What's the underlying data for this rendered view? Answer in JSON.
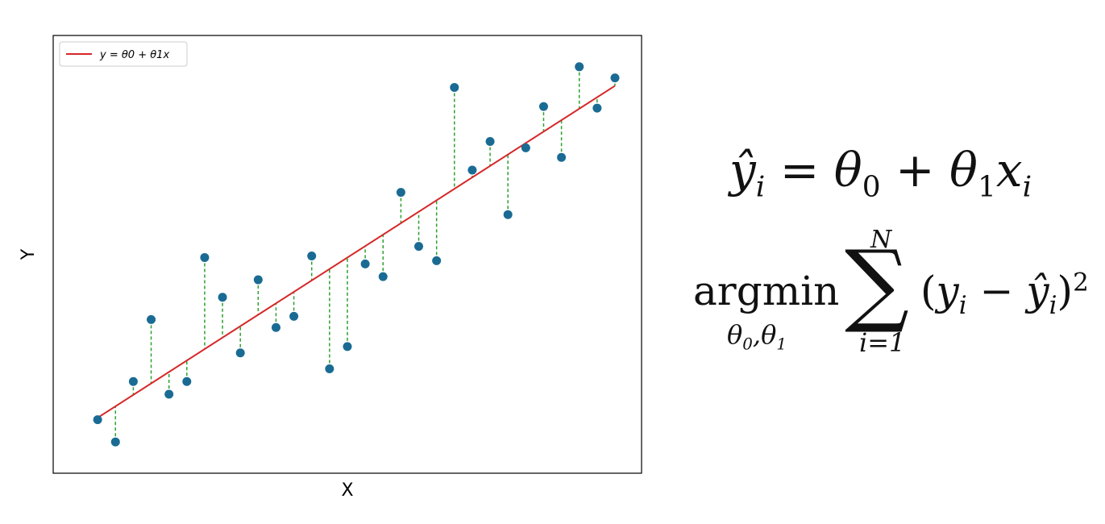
{
  "chart_data": {
    "type": "scatter",
    "xlabel": "X",
    "ylabel": "Y",
    "legend": {
      "label": "y = θ0 + θ1x",
      "placement": "top-left"
    },
    "xlim": [
      0,
      30
    ],
    "ylim": [
      -1,
      24
    ],
    "grid": false,
    "fit_line": {
      "intercept": 0.5,
      "slope": 0.72
    },
    "points": [
      {
        "x": 1,
        "y": 1.1
      },
      {
        "x": 2,
        "y": -0.3
      },
      {
        "x": 3,
        "y": 3.5
      },
      {
        "x": 4,
        "y": 7.4
      },
      {
        "x": 5,
        "y": 2.7
      },
      {
        "x": 6,
        "y": 3.5
      },
      {
        "x": 7,
        "y": 11.3
      },
      {
        "x": 8,
        "y": 8.8
      },
      {
        "x": 9,
        "y": 5.3
      },
      {
        "x": 10,
        "y": 9.9
      },
      {
        "x": 11,
        "y": 6.9
      },
      {
        "x": 12,
        "y": 7.6
      },
      {
        "x": 13,
        "y": 11.4
      },
      {
        "x": 14,
        "y": 4.3
      },
      {
        "x": 15,
        "y": 5.7
      },
      {
        "x": 16,
        "y": 10.9
      },
      {
        "x": 17,
        "y": 10.1
      },
      {
        "x": 18,
        "y": 15.4
      },
      {
        "x": 19,
        "y": 12.0
      },
      {
        "x": 20,
        "y": 11.1
      },
      {
        "x": 21,
        "y": 22.0
      },
      {
        "x": 22,
        "y": 16.8
      },
      {
        "x": 23,
        "y": 18.6
      },
      {
        "x": 24,
        "y": 14.0
      },
      {
        "x": 25,
        "y": 18.2
      },
      {
        "x": 26,
        "y": 20.8
      },
      {
        "x": 27,
        "y": 17.6
      },
      {
        "x": 28,
        "y": 23.3
      },
      {
        "x": 29,
        "y": 20.7
      },
      {
        "x": 30,
        "y": 22.6
      }
    ],
    "colors": {
      "points": "#1a6b94",
      "line": "#d62728",
      "residuals": "#2ca02c"
    }
  }
}
